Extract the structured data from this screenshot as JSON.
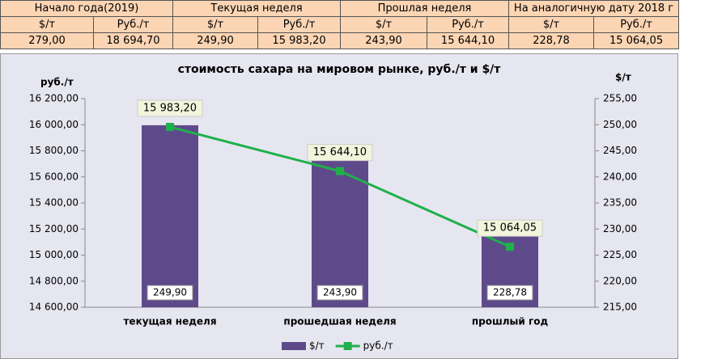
{
  "table": {
    "header": [
      "Начало года(2019)",
      "Текущая неделя",
      "Прошлая неделя",
      "На аналогичную дату 2018 г"
    ],
    "units": [
      "$/т",
      "Руб./т",
      "$/т",
      "Руб./т",
      "$/т",
      "Руб./т",
      "$/т",
      "Руб./т"
    ],
    "values": [
      "279,00",
      "18 694,70",
      "249,90",
      "15 983,20",
      "243,90",
      "15 644,10",
      "228,78",
      "15 064,05"
    ]
  },
  "chart_data": {
    "type": "bar-line",
    "title": "стоимость сахара на мировом рынке, руб./т и $/т",
    "y_label": "руб./т",
    "y2_label": "$/т",
    "categories": [
      "текущая  неделя",
      "прошедшая неделя",
      "прошлый год"
    ],
    "series": [
      {
        "name": "$/т",
        "type": "bar",
        "axis": "y2",
        "color": "#5e4a8b",
        "values": [
          249.9,
          243.9,
          228.78
        ],
        "value_labels": [
          "249,90",
          "243,90",
          "228,78"
        ]
      },
      {
        "name": "руб./т",
        "type": "line",
        "axis": "y",
        "color": "#1fb04a",
        "values": [
          15983.2,
          15644.1,
          15064.05
        ],
        "value_labels": [
          "15 983,20",
          "15 644,10",
          "15 064,05"
        ]
      }
    ],
    "ylim": [
      14600,
      16200
    ],
    "yticks": [
      {
        "value": 14600,
        "label": "14 600,00"
      },
      {
        "value": 14800,
        "label": "14 800,00"
      },
      {
        "value": 15000,
        "label": "15 000,00"
      },
      {
        "value": 15200,
        "label": "15 200,00"
      },
      {
        "value": 15400,
        "label": "15 400,00"
      },
      {
        "value": 15600,
        "label": "15 600,00"
      },
      {
        "value": 15800,
        "label": "15 800,00"
      },
      {
        "value": 16000,
        "label": "16 000,00"
      },
      {
        "value": 16200,
        "label": "16 200,00"
      }
    ],
    "y2lim": [
      215,
      255
    ],
    "y2ticks": [
      {
        "value": 215,
        "label": "215,00"
      },
      {
        "value": 220,
        "label": "220,00"
      },
      {
        "value": 225,
        "label": "225,00"
      },
      {
        "value": 230,
        "label": "230,00"
      },
      {
        "value": 235,
        "label": "235,00"
      },
      {
        "value": 240,
        "label": "240,00"
      },
      {
        "value": 245,
        "label": "245,00"
      },
      {
        "value": 250,
        "label": "250,00"
      },
      {
        "value": 255,
        "label": "255,00"
      }
    ],
    "grid": false
  }
}
